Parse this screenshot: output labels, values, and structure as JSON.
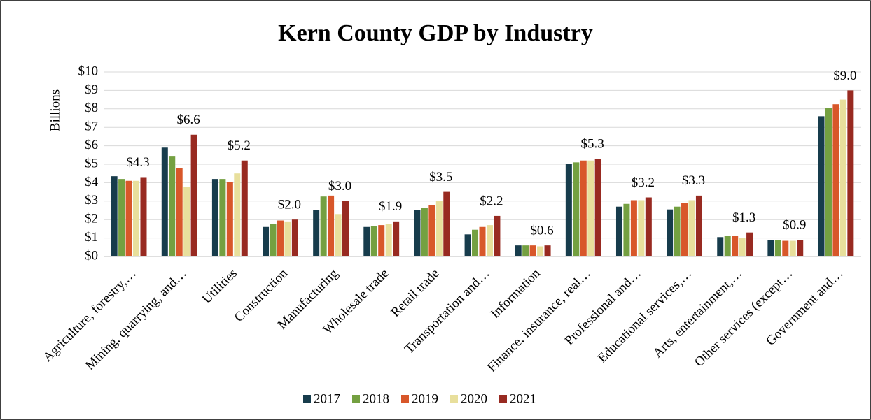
{
  "chart_data": {
    "type": "bar",
    "title": "Kern County GDP by Industry",
    "y_label": "Billions",
    "categories": [
      "Agriculture, forestry,…",
      "Mining, quarrying, and…",
      "Utilities",
      "Construction",
      "Manufacturing",
      "Wholesale trade",
      "Retail trade",
      "Transportation and…",
      "Information",
      "Finance, insurance, real…",
      "Professional and…",
      "Educational services,…",
      "Arts, entertainment,…",
      "Other services (except…",
      "Government and…"
    ],
    "series": [
      {
        "name": "2017",
        "color": "#173c4c",
        "values": [
          4.35,
          5.9,
          4.2,
          1.6,
          2.5,
          1.6,
          2.5,
          1.2,
          0.6,
          5.0,
          2.7,
          2.55,
          1.05,
          0.9,
          7.6
        ]
      },
      {
        "name": "2018",
        "color": "#74a041",
        "values": [
          4.2,
          5.45,
          4.2,
          1.75,
          3.25,
          1.65,
          2.65,
          1.45,
          0.6,
          5.1,
          2.85,
          2.7,
          1.1,
          0.9,
          8.05
        ]
      },
      {
        "name": "2019",
        "color": "#d8572a",
        "values": [
          4.1,
          4.8,
          4.05,
          1.95,
          3.3,
          1.7,
          2.8,
          1.6,
          0.6,
          5.2,
          3.05,
          2.9,
          1.1,
          0.85,
          8.25
        ]
      },
      {
        "name": "2020",
        "color": "#e8df9c",
        "values": [
          4.1,
          3.75,
          4.5,
          1.9,
          2.3,
          1.75,
          3.0,
          1.7,
          0.55,
          5.2,
          3.05,
          3.05,
          1.0,
          0.85,
          8.5
        ]
      },
      {
        "name": "2021",
        "color": "#982a21",
        "values": [
          4.3,
          6.6,
          5.2,
          2.0,
          3.0,
          1.9,
          3.5,
          2.2,
          0.6,
          5.3,
          3.2,
          3.3,
          1.3,
          0.9,
          9.0
        ],
        "value_labels": [
          "$4.3",
          "$6.6",
          "$5.2",
          "$2.0",
          "$3.0",
          "$1.9",
          "$3.5",
          "$2.2",
          "$0.6",
          "$5.3",
          "$3.2",
          "$3.3",
          "$1.3",
          "$0.9",
          "$9.0"
        ]
      }
    ],
    "ylim": [
      0,
      10
    ],
    "yticks": [
      {
        "value": 0,
        "label": "$0"
      },
      {
        "value": 1,
        "label": "$1"
      },
      {
        "value": 2,
        "label": "$2"
      },
      {
        "value": 3,
        "label": "$3"
      },
      {
        "value": 4,
        "label": "$4"
      },
      {
        "value": 5,
        "label": "$5"
      },
      {
        "value": 6,
        "label": "$6"
      },
      {
        "value": 7,
        "label": "$7"
      },
      {
        "value": 8,
        "label": "$8"
      },
      {
        "value": 9,
        "label": "$9"
      },
      {
        "value": 10,
        "label": "$10"
      }
    ],
    "grid": true,
    "legend": "bottom"
  }
}
